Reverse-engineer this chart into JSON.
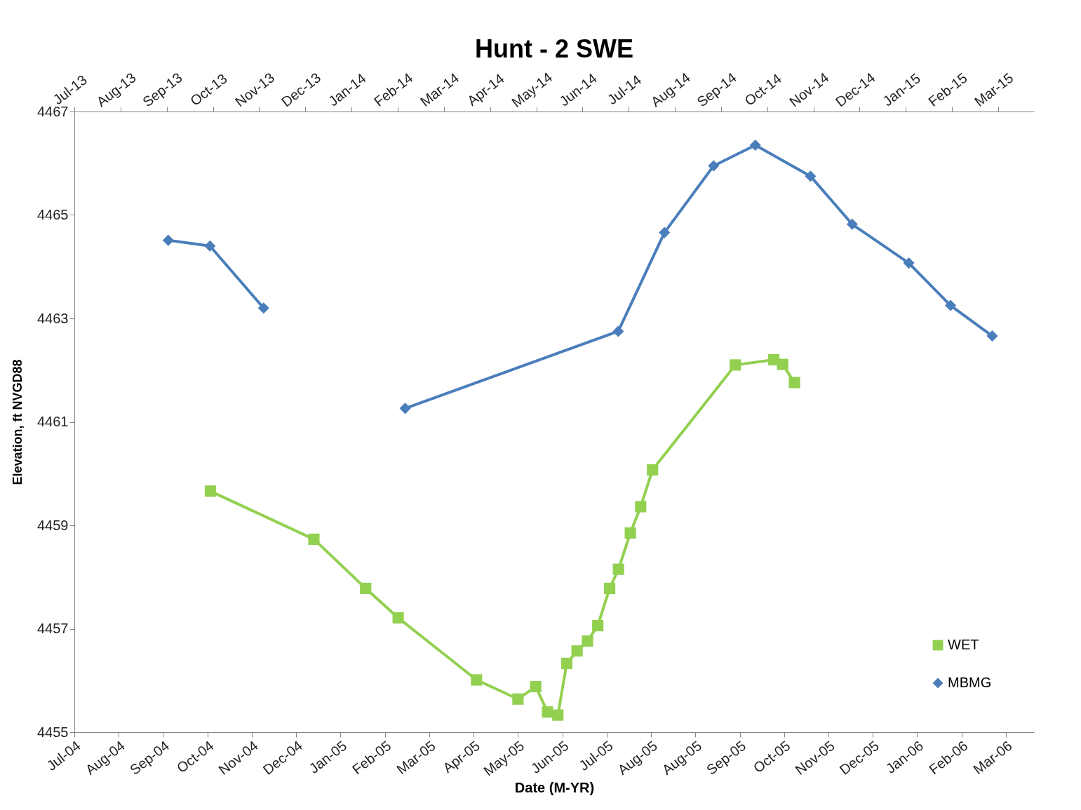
{
  "chart_data": {
    "type": "line",
    "title": "Hunt - 2 SWE",
    "xlabel": "Date (M-YR)",
    "ylabel": "Elevation, ft NVGD88",
    "xlim": [
      "2004-07-07",
      "2006-04-17"
    ],
    "xticks": [
      {
        "value": "2004-07-07",
        "label": "Jul-04"
      },
      {
        "value": "2004-08-06",
        "label": "Aug-04"
      },
      {
        "value": "2004-09-05",
        "label": "Sep-04"
      },
      {
        "value": "2004-10-05",
        "label": "Oct-04"
      },
      {
        "value": "2004-11-04",
        "label": "Nov-04"
      },
      {
        "value": "2004-12-04",
        "label": "Dec-04"
      },
      {
        "value": "2005-01-03",
        "label": "Jan-05"
      },
      {
        "value": "2005-02-02",
        "label": "Feb-05"
      },
      {
        "value": "2005-03-04",
        "label": "Mar-05"
      },
      {
        "value": "2005-04-03",
        "label": "Apr-05"
      },
      {
        "value": "2005-05-03",
        "label": "May-05"
      },
      {
        "value": "2005-06-02",
        "label": "Jun-05"
      },
      {
        "value": "2005-07-02",
        "label": "Jul-05"
      },
      {
        "value": "2005-08-01",
        "label": "Aug-05"
      },
      {
        "value": "2005-08-31",
        "label": "Aug-05"
      },
      {
        "value": "2005-09-30",
        "label": "Sep-05"
      },
      {
        "value": "2005-10-30",
        "label": "Oct-05"
      },
      {
        "value": "2005-11-29",
        "label": "Nov-05"
      },
      {
        "value": "2005-12-29",
        "label": "Dec-05"
      },
      {
        "value": "2006-01-28",
        "label": "Jan-06"
      },
      {
        "value": "2006-02-27",
        "label": "Feb-06"
      },
      {
        "value": "2006-03-29",
        "label": "Mar-06"
      }
    ],
    "x2lim": [
      "2013-07-01",
      "2015-04-06"
    ],
    "x2ticks": [
      {
        "value": "2013-07-01",
        "label": "Jul-13"
      },
      {
        "value": "2013-08-01",
        "label": "Aug-13"
      },
      {
        "value": "2013-09-01",
        "label": "Sep-13"
      },
      {
        "value": "2013-10-02",
        "label": "Oct-13"
      },
      {
        "value": "2013-11-02",
        "label": "Nov-13"
      },
      {
        "value": "2013-12-03",
        "label": "Dec-13"
      },
      {
        "value": "2014-01-03",
        "label": "Jan-14"
      },
      {
        "value": "2014-02-03",
        "label": "Feb-14"
      },
      {
        "value": "2014-03-06",
        "label": "Mar-14"
      },
      {
        "value": "2014-04-06",
        "label": "Apr-14"
      },
      {
        "value": "2014-05-07",
        "label": "May-14"
      },
      {
        "value": "2014-06-07",
        "label": "Jun-14"
      },
      {
        "value": "2014-07-08",
        "label": "Jul-14"
      },
      {
        "value": "2014-08-08",
        "label": "Aug-14"
      },
      {
        "value": "2014-09-08",
        "label": "Sep-14"
      },
      {
        "value": "2014-10-09",
        "label": "Oct-14"
      },
      {
        "value": "2014-11-09",
        "label": "Nov-14"
      },
      {
        "value": "2014-12-10",
        "label": "Dec-14"
      },
      {
        "value": "2015-01-10",
        "label": "Jan-15"
      },
      {
        "value": "2015-02-10",
        "label": "Feb-15"
      },
      {
        "value": "2015-03-13",
        "label": "Mar-15"
      }
    ],
    "ylim": [
      4455,
      4467
    ],
    "yticks": [
      4455,
      4457,
      4459,
      4461,
      4463,
      4465,
      4467
    ],
    "legend": "bottom right",
    "series": [
      {
        "name": "WET",
        "color": "#92d050",
        "marker": "square",
        "x": [
          "2004-10-07",
          "2004-12-16",
          "2005-01-20",
          "2005-02-11",
          "2005-04-05",
          "2005-05-03",
          "2005-05-15",
          "2005-05-23",
          "2005-05-30",
          "2005-06-05",
          "2005-06-12",
          "2005-06-19",
          "2005-06-26",
          "2005-07-04",
          "2005-07-10",
          "2005-07-18",
          "2005-07-25",
          "2005-08-02",
          "2005-09-27",
          "2005-10-23",
          "2005-10-29",
          "2005-11-06"
        ],
        "values": [
          4459.66,
          4458.73,
          4457.78,
          4457.21,
          4456.01,
          4455.64,
          4455.88,
          4455.39,
          4455.33,
          4456.33,
          4456.57,
          4456.76,
          4457.06,
          4457.78,
          4458.15,
          4458.85,
          4459.36,
          4460.07,
          4462.1,
          4462.2,
          4462.11,
          4461.76
        ]
      },
      {
        "name": "MBMG",
        "color": "#4a7ebb",
        "marker": "diamond",
        "axis": "x2",
        "x": [
          "2013-09-02",
          "2013-09-30",
          "2013-11-05",
          "2013-12-20",
          "2014-02-08",
          "2014-07-01",
          "2014-08-01",
          "2014-09-03",
          "2014-10-01",
          "2014-11-07",
          "2014-12-05",
          "2015-01-12",
          "2015-02-09",
          "2015-03-09"
        ],
        "values": [
          4464.51,
          4464.4,
          4463.2,
          null,
          4461.26,
          4462.75,
          4464.66,
          4465.95,
          4466.35,
          4465.75,
          4464.82,
          4464.07,
          4463.25,
          4462.66
        ]
      }
    ]
  }
}
